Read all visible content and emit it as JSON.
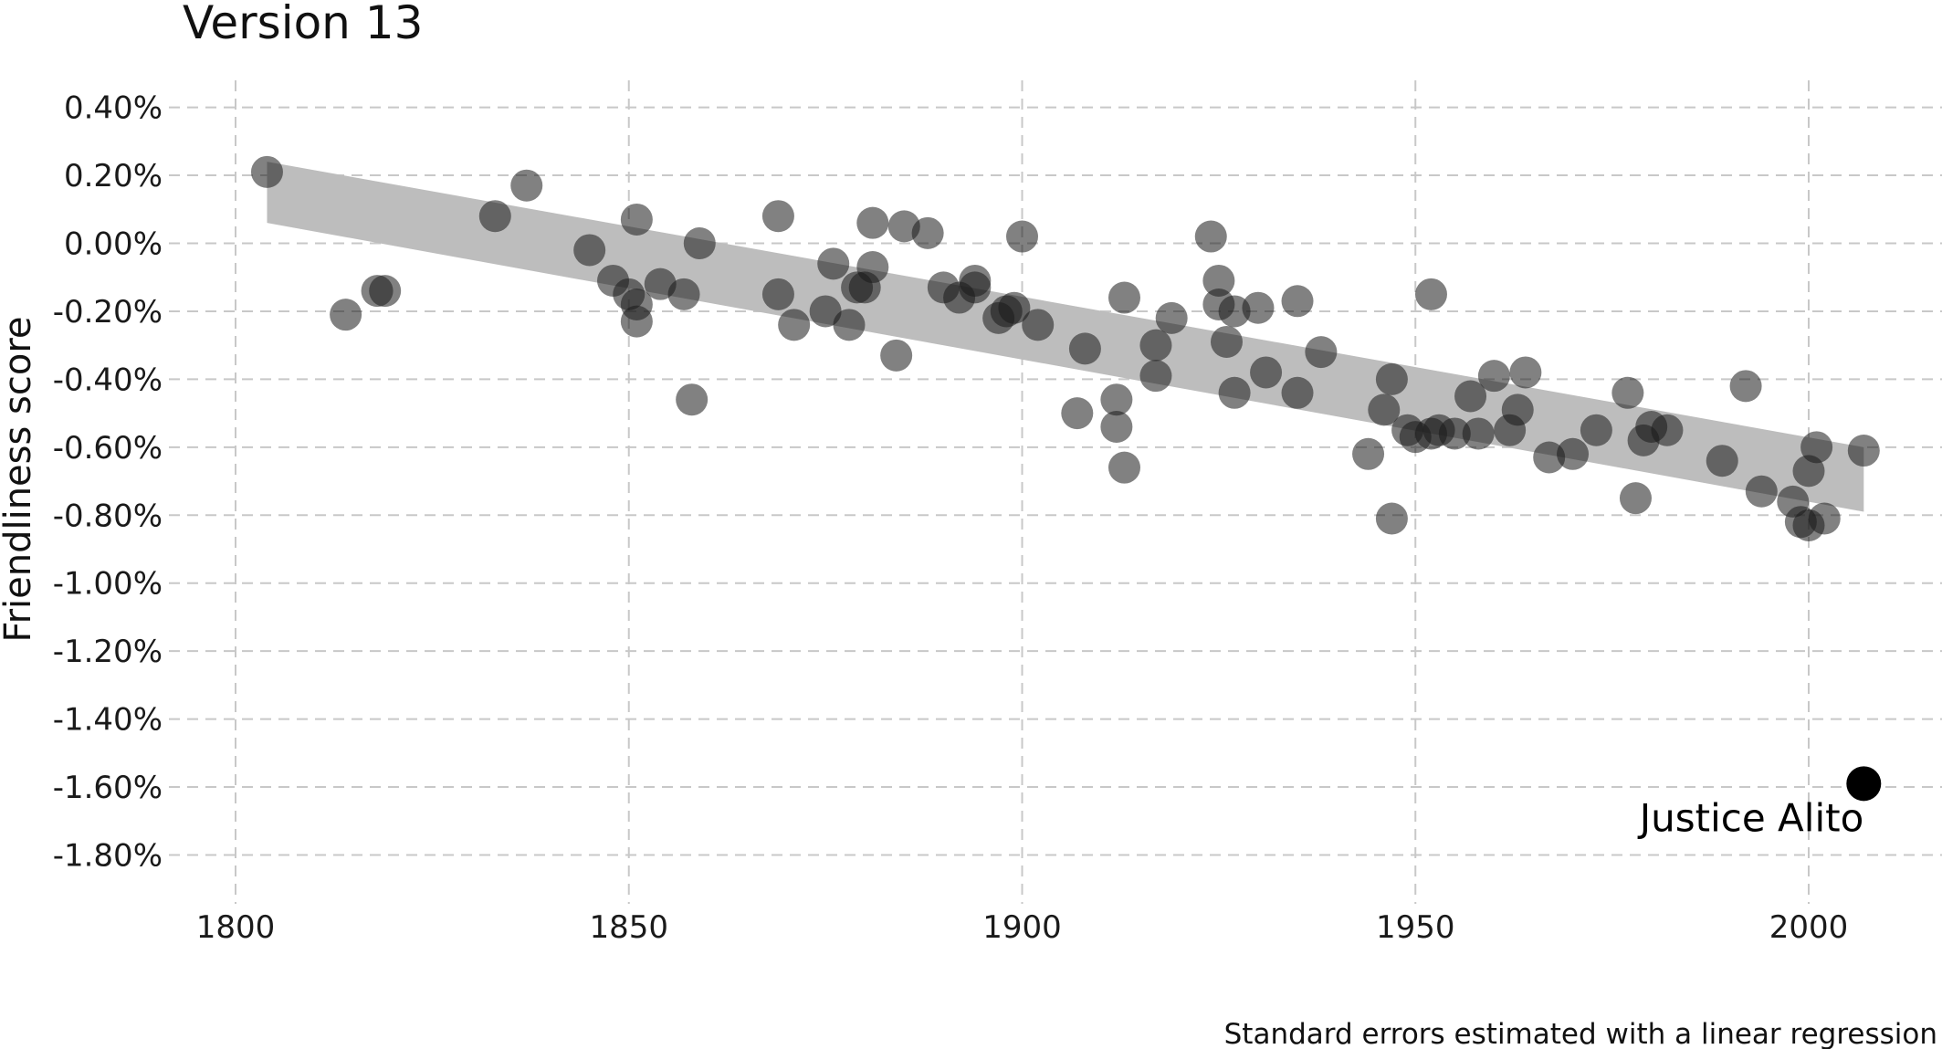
{
  "chart_data": {
    "type": "scatter",
    "title": "Version 13",
    "ylabel": "Friendliness score",
    "xlabel": "",
    "caption": "Standard errors estimated with a linear regression",
    "xlim": [
      1795,
      2015
    ],
    "ylim": [
      -1.95,
      0.47
    ],
    "x_ticks": [
      1800,
      1850,
      1900,
      1950,
      2000
    ],
    "x_tick_labels": [
      "1800",
      "1850",
      "1900",
      "1950",
      "2000"
    ],
    "y_ticks": [
      0.4,
      0.2,
      0.0,
      -0.2,
      -0.4,
      -0.6,
      -0.8,
      -1.0,
      -1.2,
      -1.4,
      -1.6,
      -1.8
    ],
    "y_tick_labels": [
      "0.40%",
      "0.20%",
      "0.00%",
      "-0.20%",
      "-0.40%",
      "-0.60%",
      "-0.80%",
      "-1.00%",
      "-1.20%",
      "-1.40%",
      "-1.60%",
      "-1.80%"
    ],
    "grid": true,
    "band": {
      "x": [
        1804,
        2007
      ],
      "upper": [
        0.24,
        -0.6
      ],
      "lower": [
        0.06,
        -0.79
      ],
      "color": "#bdbdbd"
    },
    "point_color": "#1a1a1a",
    "points": [
      {
        "x": 1804,
        "y": 0.21
      },
      {
        "x": 1814,
        "y": -0.21
      },
      {
        "x": 1818,
        "y": -0.14
      },
      {
        "x": 1819,
        "y": -0.14
      },
      {
        "x": 1833,
        "y": 0.08
      },
      {
        "x": 1837,
        "y": 0.17
      },
      {
        "x": 1845,
        "y": -0.02
      },
      {
        "x": 1848,
        "y": -0.11
      },
      {
        "x": 1850,
        "y": -0.15
      },
      {
        "x": 1851,
        "y": 0.07
      },
      {
        "x": 1851,
        "y": -0.18
      },
      {
        "x": 1851,
        "y": -0.23
      },
      {
        "x": 1854,
        "y": -0.12
      },
      {
        "x": 1857,
        "y": -0.15
      },
      {
        "x": 1858,
        "y": -0.46
      },
      {
        "x": 1859,
        "y": 0.0
      },
      {
        "x": 1869,
        "y": 0.08
      },
      {
        "x": 1869,
        "y": -0.15
      },
      {
        "x": 1871,
        "y": -0.24
      },
      {
        "x": 1875,
        "y": -0.2
      },
      {
        "x": 1876,
        "y": -0.06
      },
      {
        "x": 1878,
        "y": -0.24
      },
      {
        "x": 1879,
        "y": -0.13
      },
      {
        "x": 1880,
        "y": -0.13
      },
      {
        "x": 1881,
        "y": 0.06
      },
      {
        "x": 1881,
        "y": -0.07
      },
      {
        "x": 1884,
        "y": -0.33
      },
      {
        "x": 1885,
        "y": 0.05
      },
      {
        "x": 1888,
        "y": 0.03
      },
      {
        "x": 1890,
        "y": -0.13
      },
      {
        "x": 1892,
        "y": -0.16
      },
      {
        "x": 1894,
        "y": -0.13
      },
      {
        "x": 1894,
        "y": -0.11
      },
      {
        "x": 1897,
        "y": -0.22
      },
      {
        "x": 1898,
        "y": -0.2
      },
      {
        "x": 1899,
        "y": -0.19
      },
      {
        "x": 1900,
        "y": 0.02
      },
      {
        "x": 1902,
        "y": -0.24
      },
      {
        "x": 1908,
        "y": -0.31
      },
      {
        "x": 1907,
        "y": -0.5
      },
      {
        "x": 1912,
        "y": -0.54
      },
      {
        "x": 1912,
        "y": -0.46
      },
      {
        "x": 1913,
        "y": -0.16
      },
      {
        "x": 1913,
        "y": -0.66
      },
      {
        "x": 1917,
        "y": -0.3
      },
      {
        "x": 1917,
        "y": -0.39
      },
      {
        "x": 1919,
        "y": -0.22
      },
      {
        "x": 1924,
        "y": 0.02
      },
      {
        "x": 1925,
        "y": -0.11
      },
      {
        "x": 1925,
        "y": -0.18
      },
      {
        "x": 1926,
        "y": -0.29
      },
      {
        "x": 1927,
        "y": -0.2
      },
      {
        "x": 1927,
        "y": -0.44
      },
      {
        "x": 1930,
        "y": -0.19
      },
      {
        "x": 1931,
        "y": -0.38
      },
      {
        "x": 1935,
        "y": -0.44
      },
      {
        "x": 1935,
        "y": -0.17
      },
      {
        "x": 1938,
        "y": -0.32
      },
      {
        "x": 1944,
        "y": -0.62
      },
      {
        "x": 1946,
        "y": -0.49
      },
      {
        "x": 1947,
        "y": -0.4
      },
      {
        "x": 1947,
        "y": -0.81
      },
      {
        "x": 1949,
        "y": -0.55
      },
      {
        "x": 1950,
        "y": -0.57
      },
      {
        "x": 1952,
        "y": -0.15
      },
      {
        "x": 1952,
        "y": -0.56
      },
      {
        "x": 1953,
        "y": -0.55
      },
      {
        "x": 1955,
        "y": -0.56
      },
      {
        "x": 1957,
        "y": -0.45
      },
      {
        "x": 1958,
        "y": -0.56
      },
      {
        "x": 1960,
        "y": -0.39
      },
      {
        "x": 1962,
        "y": -0.55
      },
      {
        "x": 1963,
        "y": -0.49
      },
      {
        "x": 1964,
        "y": -0.38
      },
      {
        "x": 1967,
        "y": -0.63
      },
      {
        "x": 1970,
        "y": -0.62
      },
      {
        "x": 1973,
        "y": -0.55
      },
      {
        "x": 1977,
        "y": -0.44
      },
      {
        "x": 1978,
        "y": -0.75
      },
      {
        "x": 1979,
        "y": -0.58
      },
      {
        "x": 1980,
        "y": -0.54
      },
      {
        "x": 1982,
        "y": -0.55
      },
      {
        "x": 1989,
        "y": -0.64
      },
      {
        "x": 1992,
        "y": -0.42
      },
      {
        "x": 1994,
        "y": -0.73
      },
      {
        "x": 1998,
        "y": -0.76
      },
      {
        "x": 1999,
        "y": -0.82
      },
      {
        "x": 2000,
        "y": -0.67
      },
      {
        "x": 2001,
        "y": -0.6
      },
      {
        "x": 2000,
        "y": -0.83
      },
      {
        "x": 2002,
        "y": -0.81
      },
      {
        "x": 2007,
        "y": -0.61
      }
    ],
    "highlight": {
      "x": 2007,
      "y": -1.59,
      "label": "Justice Alito",
      "color": "#000000"
    }
  }
}
